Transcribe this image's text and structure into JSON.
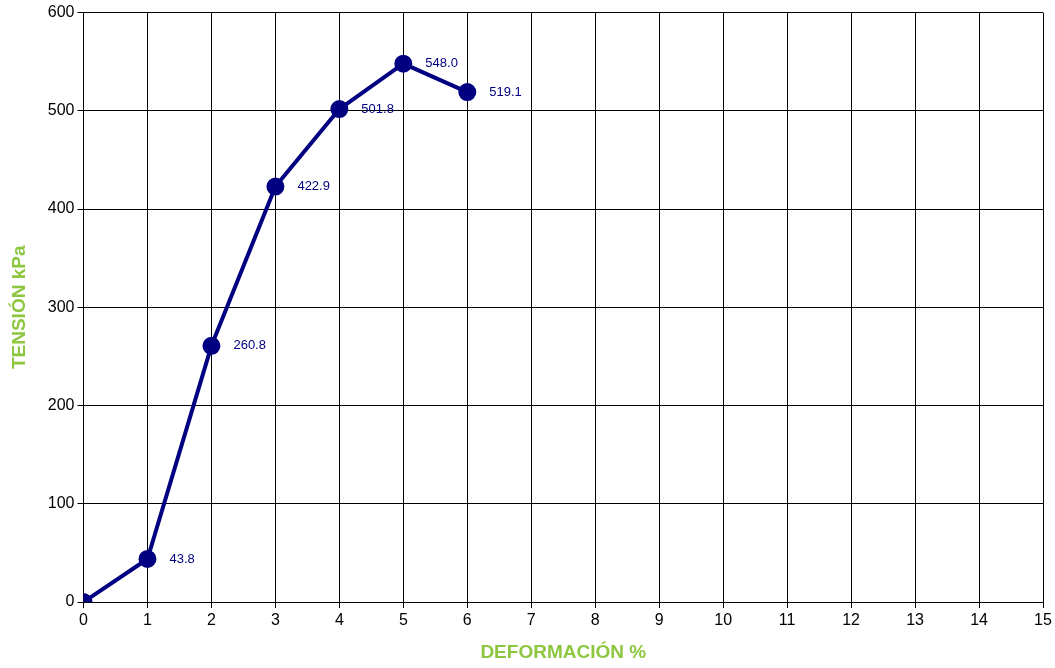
{
  "chart_data": {
    "type": "line",
    "xlabel": "DEFORMACIÓN %",
    "ylabel": "TENSIÓN kPa",
    "x": [
      0,
      1,
      2,
      3,
      4,
      5,
      6
    ],
    "series": [
      {
        "color": "#000080",
        "values": [
          0,
          43.8,
          260.8,
          422.9,
          501.8,
          548.0,
          519.1
        ],
        "value_labels": [
          null,
          "43.8",
          "260.8",
          "422.9",
          "501.8",
          "548.0",
          "519.1"
        ]
      }
    ],
    "xlim": [
      0,
      15
    ],
    "xticks": [
      0,
      1,
      2,
      3,
      4,
      5,
      6,
      7,
      8,
      9,
      10,
      11,
      12,
      13,
      14,
      15
    ],
    "ylim": [
      0,
      600
    ],
    "yticks": [
      0,
      100,
      200,
      300,
      400,
      500,
      600
    ],
    "grid": true,
    "legend": false,
    "marker": "circle",
    "line_style": "solid"
  }
}
